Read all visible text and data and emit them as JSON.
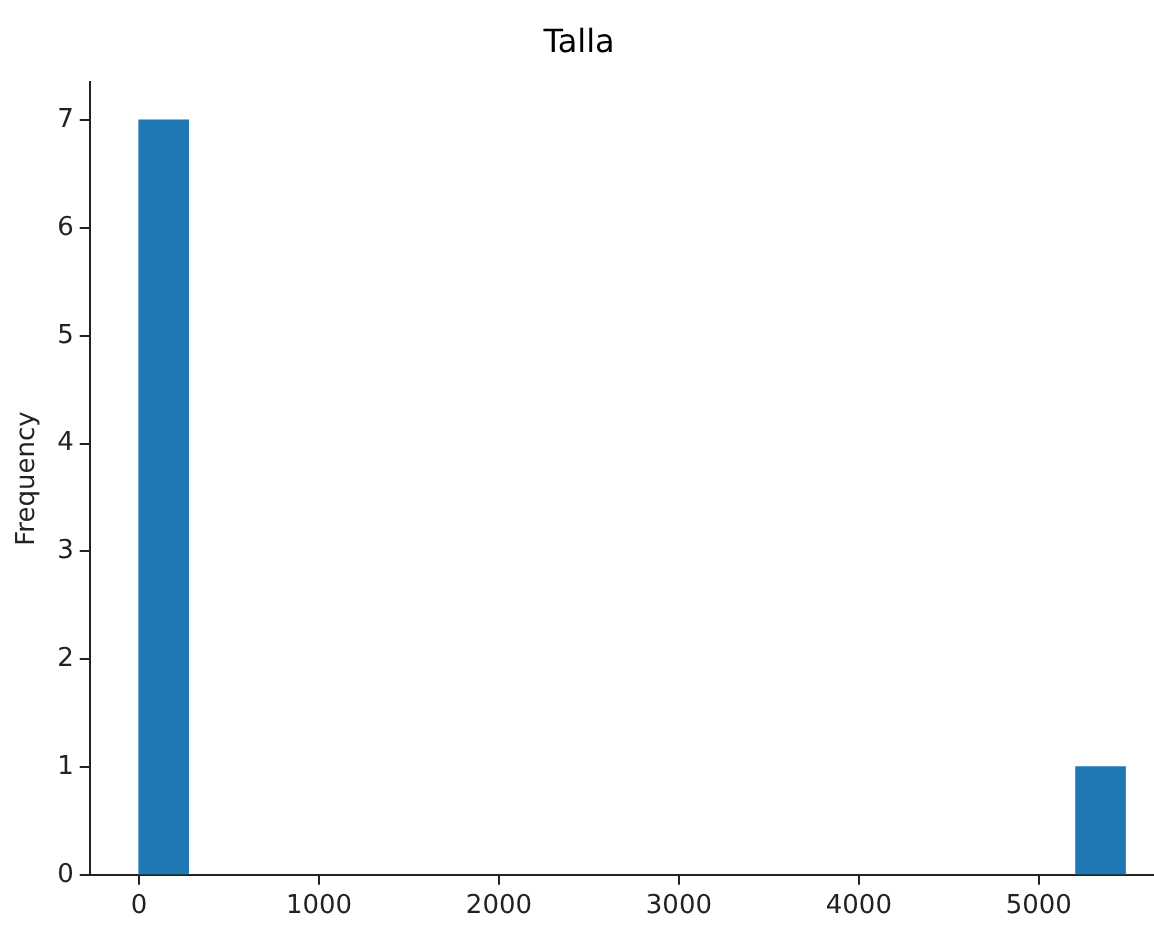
{
  "chart_data": {
    "type": "histogram",
    "title": "Talla",
    "ylabel": "Frequency",
    "color": "#1f77b4",
    "bins": [
      0,
      274,
      548,
      822,
      1096,
      1370,
      1644,
      1918,
      2192,
      2466,
      2740,
      3014,
      3288,
      3562,
      3836,
      4110,
      4384,
      4658,
      4932,
      5206,
      5480
    ],
    "values": [
      7,
      0,
      0,
      0,
      0,
      0,
      0,
      0,
      0,
      0,
      0,
      0,
      0,
      0,
      0,
      0,
      0,
      0,
      0,
      1
    ],
    "xlim": [
      -274,
      5640
    ],
    "xticks": [
      0,
      1000,
      2000,
      3000,
      4000,
      5000
    ],
    "ylim": [
      0,
      7.35
    ],
    "yticks": [
      0,
      1,
      2,
      3,
      4,
      5,
      6,
      7
    ],
    "grid": false,
    "legend": false
  }
}
